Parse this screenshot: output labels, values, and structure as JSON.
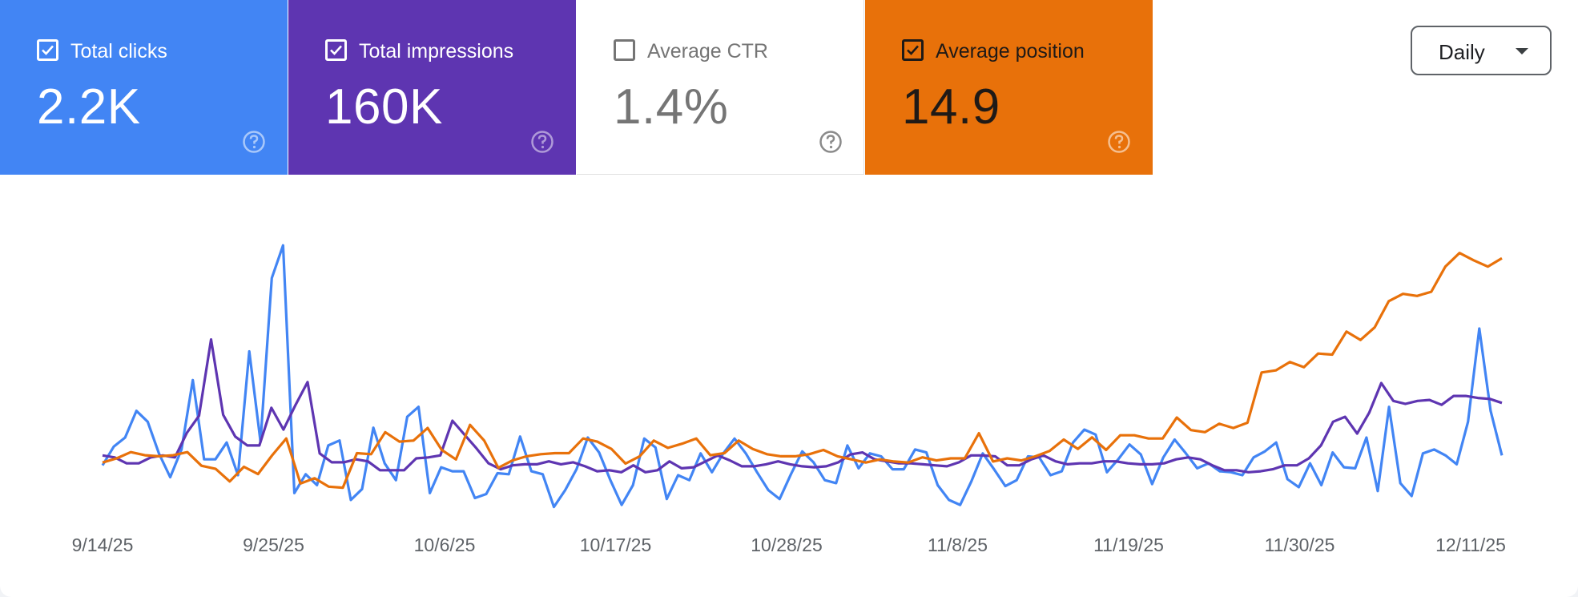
{
  "metrics": [
    {
      "id": "clicks",
      "label": "Total clicks",
      "value": "2.2K",
      "checked": true,
      "color": "#4285f4"
    },
    {
      "id": "impressions",
      "label": "Total impressions",
      "value": "160K",
      "checked": true,
      "color": "#5e35b1"
    },
    {
      "id": "ctr",
      "label": "Average CTR",
      "value": "1.4%",
      "checked": false,
      "color": "#ffffff"
    },
    {
      "id": "position",
      "label": "Average position",
      "value": "14.9",
      "checked": true,
      "color": "#e8710a"
    }
  ],
  "range_selector": {
    "selected": "Daily"
  },
  "icons": {
    "checkbox": "checkbox-icon",
    "help": "help-circle-icon",
    "dropdown": "caret-down-icon"
  },
  "chart_data": {
    "type": "line",
    "x_tick_labels": [
      "9/14/25",
      "9/25/25",
      "10/6/25",
      "10/17/25",
      "10/28/25",
      "11/8/25",
      "11/19/25",
      "11/30/25",
      "12/11/25"
    ],
    "x_range": [
      "9/13/25",
      "12/12/25"
    ],
    "grid": false,
    "legend": "none",
    "series": [
      {
        "name": "Total clicks",
        "color": "#4285f4",
        "values": [
          18,
          37,
          46,
          73,
          62,
          30,
          6,
          34,
          104,
          24,
          24,
          41,
          8,
          133,
          42,
          207,
          240,
          -10,
          9,
          -2,
          38,
          43,
          -17,
          -6,
          56,
          20,
          3,
          67,
          77,
          -10,
          16,
          12,
          12,
          -15,
          -11,
          10,
          9,
          47,
          12,
          9,
          -24,
          -7,
          14,
          46,
          31,
          3,
          -22,
          -2,
          45,
          36,
          -16,
          8,
          3,
          30,
          11,
          30,
          45,
          30,
          11,
          -7,
          -16,
          9,
          32,
          21,
          3,
          0,
          38,
          15,
          30,
          27,
          14,
          14,
          34,
          31,
          -2,
          -17,
          -22,
          2,
          30,
          14,
          -3,
          3,
          27,
          26,
          8,
          12,
          41,
          54,
          49,
          11,
          24,
          39,
          29,
          -1,
          26,
          44,
          30,
          15,
          20,
          12,
          11,
          8,
          26,
          32,
          41,
          4,
          -4,
          20,
          -2,
          31,
          16,
          15,
          46,
          -8,
          77,
          0,
          -13,
          30,
          34,
          28,
          19,
          62,
          156,
          73,
          28
        ]
      },
      {
        "name": "Total impressions",
        "color": "#5e35b1",
        "values": [
          28,
          26,
          20,
          20,
          26,
          28,
          26,
          51,
          68,
          145,
          69,
          47,
          38,
          38,
          76,
          54,
          79,
          102,
          30,
          21,
          21,
          24,
          22,
          13,
          13,
          13,
          25,
          26,
          28,
          63,
          49,
          35,
          20,
          14,
          18,
          19,
          19,
          22,
          19,
          21,
          17,
          12,
          13,
          11,
          18,
          11,
          13,
          22,
          15,
          16,
          22,
          28,
          23,
          17,
          17,
          19,
          22,
          19,
          17,
          16,
          17,
          21,
          29,
          31,
          24,
          22,
          20,
          20,
          19,
          18,
          17,
          21,
          28,
          28,
          27,
          18,
          18,
          24,
          28,
          22,
          19,
          20,
          20,
          22,
          22,
          20,
          19,
          19,
          20,
          24,
          26,
          24,
          18,
          13,
          13,
          11,
          12,
          14,
          18,
          18,
          25,
          38,
          62,
          67,
          50,
          71,
          101,
          83,
          80,
          83,
          84,
          79,
          88,
          88,
          86,
          85,
          81
        ]
      },
      {
        "name": "Average position",
        "color": "#e8710a",
        "values": [
          12.3,
          12.7,
          13.3,
          13.0,
          12.9,
          13.0,
          13.3,
          12.0,
          11.7,
          10.5,
          11.9,
          11.2,
          13.0,
          14.6,
          10.3,
          10.8,
          10.0,
          9.9,
          13.2,
          13.1,
          15.2,
          14.3,
          14.4,
          15.6,
          13.5,
          12.6,
          15.9,
          14.4,
          11.8,
          12.5,
          12.9,
          13.1,
          13.2,
          13.2,
          14.6,
          14.3,
          13.6,
          12.2,
          12.9,
          14.4,
          13.7,
          14.1,
          14.6,
          13.0,
          13.2,
          14.4,
          13.6,
          13.1,
          12.9,
          12.9,
          13.1,
          13.5,
          12.9,
          12.6,
          12.3,
          12.6,
          12.4,
          12.3,
          12.8,
          12.5,
          12.7,
          12.7,
          15.1,
          12.4,
          12.7,
          12.5,
          12.9,
          13.4,
          14.5,
          13.6,
          14.7,
          13.5,
          14.9,
          14.9,
          14.6,
          14.6,
          16.6,
          15.4,
          15.2,
          16.0,
          15.6,
          16.1,
          20.9,
          21.1,
          21.9,
          21.4,
          22.7,
          22.6,
          24.8,
          24.0,
          25.2,
          27.7,
          28.4,
          28.2,
          28.6,
          31.0,
          32.3,
          31.6,
          31.0,
          31.8
        ]
      }
    ]
  }
}
